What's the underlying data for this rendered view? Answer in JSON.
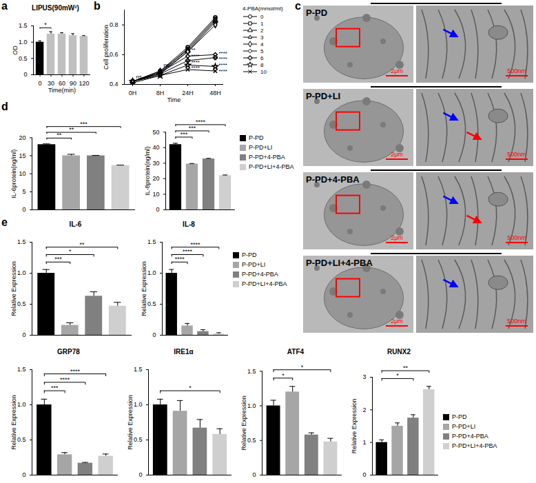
{
  "chart_data": [
    {
      "type": "bar",
      "panel_label": "a",
      "title": "LIPUS(90mW²)",
      "categories": [
        "0",
        "30",
        "60",
        "90",
        "120"
      ],
      "values": [
        1.0,
        1.25,
        1.25,
        1.2,
        1.18
      ],
      "errors": [
        0.04,
        0.07,
        0.04,
        0.06,
        0.02
      ],
      "colors": [
        "#000000",
        "#c0c0c0",
        "#c0c0c0",
        "#c0c0c0",
        "#c0c0c0"
      ],
      "ylim": [
        0,
        1.5
      ],
      "yticks": [
        0,
        0.5,
        {
          "value": 1,
          "label": "1.0"
        },
        1.5
      ],
      "xlabel": "Time(min)",
      "ylabel": "OD",
      "annotations": [
        {
          "between": [
            "0",
            "30"
          ],
          "text": "*"
        }
      ]
    },
    {
      "type": "line",
      "panel_label": "b",
      "categories": [
        "0H",
        "8H",
        "24H",
        "48H"
      ],
      "legend": "right",
      "legend_title": "4-PBA(mmol/ml)",
      "series": [
        {
          "name": "0",
          "color": "#000000",
          "marker": "circle",
          "values": [
            0.42,
            0.49,
            0.65,
            0.85
          ]
        },
        {
          "name": "1",
          "color": "#000000",
          "marker": "square",
          "values": [
            0.42,
            0.48,
            0.64,
            0.84
          ]
        },
        {
          "name": "2",
          "color": "#000000",
          "marker": "triangle",
          "values": [
            0.42,
            0.49,
            0.63,
            0.83
          ]
        },
        {
          "name": "3",
          "color": "#000000",
          "marker": "triangle2",
          "values": [
            0.42,
            0.48,
            0.62,
            0.82
          ]
        },
        {
          "name": "4",
          "color": "#000000",
          "marker": "diamond",
          "values": [
            0.42,
            0.47,
            0.62,
            0.8
          ]
        },
        {
          "name": "5",
          "color": "#000000",
          "marker": "diamond2",
          "values": [
            0.42,
            0.48,
            0.59,
            0.6
          ]
        },
        {
          "name": "6",
          "color": "#000000",
          "marker": "cross",
          "values": [
            0.42,
            0.47,
            0.56,
            0.58
          ]
        },
        {
          "name": "8",
          "color": "#000000",
          "marker": "star",
          "values": [
            0.42,
            0.46,
            0.53,
            0.52
          ]
        },
        {
          "name": "10",
          "color": "#000000",
          "marker": "times",
          "values": [
            0.41,
            0.46,
            0.5,
            0.49
          ]
        }
      ],
      "ylim": [
        0.4,
        0.9
      ],
      "yticks": [
        0.4,
        0.6,
        0.8
      ],
      "xlabel": "Time",
      "ylabel": "Cell proliferation",
      "annotations": [
        {
          "x": "0H",
          "y": 0.45,
          "text": "ns"
        },
        {
          "x": "8H",
          "y": 0.53,
          "text": "ns"
        },
        {
          "x": "24H",
          "y": 0.63,
          "text": "**"
        },
        {
          "x": "24H",
          "y": 0.59,
          "text": "****"
        },
        {
          "x": "24H",
          "y": 0.55,
          "text": "****"
        },
        {
          "x": "24H",
          "y": 0.51,
          "text": "****"
        },
        {
          "x": "48H",
          "y": 0.61,
          "text": "****"
        },
        {
          "x": "48H",
          "y": 0.57,
          "text": "****"
        },
        {
          "x": "48H",
          "y": 0.53,
          "text": "****"
        },
        {
          "x": "48H",
          "y": 0.49,
          "text": "****"
        }
      ]
    },
    {
      "type": "bar",
      "panel_label": "d",
      "tick_labels": "y",
      "categories": [
        "P-PD",
        "P-PD+LI",
        "P-PD+4-PBA",
        "P-PD+LI+4-PBA"
      ],
      "values": [
        18.1,
        15.0,
        15.0,
        12.3
      ],
      "errors": [
        0.2,
        0.4,
        0.1,
        0.1
      ],
      "colors": [
        "#000000",
        "#a6a6a6",
        "#808080",
        "#cfcfcf"
      ],
      "ylim": [
        0,
        20
      ],
      "yticks": [
        0,
        5,
        10,
        15,
        20
      ],
      "ylabel": "IL-6protein(ng/ml)",
      "annotations": [
        {
          "between": [
            "P-PD",
            "P-PD+LI"
          ],
          "text": "**"
        },
        {
          "between": [
            "P-PD",
            "P-PD+4-PBA"
          ],
          "text": "**"
        },
        {
          "between": [
            "P-PD",
            "P-PD+LI+4-PBA"
          ],
          "text": "***"
        }
      ]
    },
    {
      "type": "bar",
      "tick_labels": "y",
      "legend": "right",
      "categories": [
        "P-PD",
        "P-PD+LI",
        "P-PD+4-PBA",
        "P-PD+LI+4-PBA"
      ],
      "values": [
        42.0,
        29.5,
        32.8,
        22.0
      ],
      "errors": [
        0.8,
        0.3,
        0.3,
        0.4
      ],
      "colors": [
        "#000000",
        "#a6a6a6",
        "#808080",
        "#cfcfcf"
      ],
      "ylim": [
        0,
        50
      ],
      "yticks": [
        0,
        10,
        20,
        30,
        40,
        50
      ],
      "ylabel": "IL-8protein(ng/ml)",
      "annotations": [
        {
          "between": [
            "P-PD",
            "P-PD+LI"
          ],
          "text": "***"
        },
        {
          "between": [
            "P-PD",
            "P-PD+4-PBA"
          ],
          "text": "***"
        },
        {
          "between": [
            "P-PD",
            "P-PD+LI+4-PBA"
          ],
          "text": "****"
        }
      ]
    },
    {
      "type": "bar",
      "panel_label": "e",
      "title": "IL-6",
      "tick_labels": "y",
      "categories": [
        "P-PD",
        "P-PD+LI",
        "P-PD+4-PBA",
        "P-PD+LI+4-PBA"
      ],
      "values": [
        1.0,
        0.16,
        0.63,
        0.47
      ],
      "errors": [
        0.06,
        0.04,
        0.07,
        0.06
      ],
      "colors": [
        "#000000",
        "#a6a6a6",
        "#808080",
        "#cfcfcf"
      ],
      "ylim": [
        0,
        1.5
      ],
      "yticks": [
        0,
        0.5,
        {
          "value": 1,
          "label": "1.0"
        },
        1.5
      ],
      "ylabel": "Relative Expression",
      "annotations": [
        {
          "between": [
            "P-PD",
            "P-PD+LI"
          ],
          "text": "***"
        },
        {
          "between": [
            "P-PD",
            "P-PD+4-PBA"
          ],
          "text": "*"
        },
        {
          "between": [
            "P-PD",
            "P-PD+LI+4-PBA"
          ],
          "text": "**"
        }
      ]
    },
    {
      "type": "bar",
      "title": "IL-8",
      "tick_labels": "y",
      "legend": "right",
      "categories": [
        "P-PD",
        "P-PD+LI",
        "P-PD+4-PBA",
        "P-PD+LI+4-PBA"
      ],
      "values": [
        1.0,
        0.15,
        0.06,
        0.02
      ],
      "errors": [
        0.06,
        0.04,
        0.03,
        0.02
      ],
      "colors": [
        "#000000",
        "#a6a6a6",
        "#808080",
        "#cfcfcf"
      ],
      "ylim": [
        0,
        1.5
      ],
      "yticks": [
        0,
        0.5,
        {
          "value": 1,
          "label": "1.0"
        },
        1.5
      ],
      "ylabel": "Relative Expression",
      "annotations": [
        {
          "between": [
            "P-PD",
            "P-PD+LI"
          ],
          "text": "****"
        },
        {
          "between": [
            "P-PD",
            "P-PD+4-PBA"
          ],
          "text": "****"
        },
        {
          "between": [
            "P-PD",
            "P-PD+LI+4-PBA"
          ],
          "text": "****"
        }
      ]
    },
    {
      "type": "bar",
      "title": "GRP78",
      "tick_labels": "y",
      "categories": [
        "P-PD",
        "P-PD+LI",
        "P-PD+4-PBA",
        "P-PD+LI+4-PBA"
      ],
      "values": [
        1.0,
        0.29,
        0.17,
        0.27
      ],
      "errors": [
        0.08,
        0.03,
        0.01,
        0.03
      ],
      "colors": [
        "#000000",
        "#a6a6a6",
        "#808080",
        "#cfcfcf"
      ],
      "ylim": [
        0,
        1.5
      ],
      "yticks": [
        0,
        0.5,
        {
          "value": 1,
          "label": "1.0"
        },
        1.5
      ],
      "ylabel": "Relative Expression",
      "annotations": [
        {
          "between": [
            "P-PD",
            "P-PD+LI"
          ],
          "text": "***"
        },
        {
          "between": [
            "P-PD",
            "P-PD+4-PBA"
          ],
          "text": "****"
        },
        {
          "between": [
            "P-PD",
            "P-PD+LI+4-PBA"
          ],
          "text": "****"
        }
      ]
    },
    {
      "type": "bar",
      "title": "IRE1α",
      "tick_labels": "y",
      "categories": [
        "P-PD",
        "P-PD+LI",
        "P-PD+4-PBA",
        "P-PD+LI+4-PBA"
      ],
      "values": [
        1.0,
        0.91,
        0.67,
        0.58
      ],
      "errors": [
        0.08,
        0.15,
        0.12,
        0.08
      ],
      "colors": [
        "#000000",
        "#a6a6a6",
        "#808080",
        "#cfcfcf"
      ],
      "ylim": [
        0,
        1.5
      ],
      "yticks": [
        0,
        0.5,
        {
          "value": 1,
          "label": "1.0"
        },
        1.5
      ],
      "ylabel": "Relative Expression",
      "annotations": [
        {
          "between": [
            "P-PD",
            "P-PD+LI+4-PBA"
          ],
          "text": "*"
        }
      ]
    },
    {
      "type": "bar",
      "title": "ATF4",
      "tick_labels": "y",
      "categories": [
        "P-PD",
        "P-PD+LI",
        "P-PD+4-PBA",
        "P-PD+LI+4-PBA"
      ],
      "values": [
        1.0,
        1.2,
        0.58,
        0.48
      ],
      "errors": [
        0.08,
        0.08,
        0.03,
        0.05
      ],
      "colors": [
        "#000000",
        "#a6a6a6",
        "#808080",
        "#cfcfcf"
      ],
      "ylim": [
        0,
        1.5
      ],
      "yticks": [
        0,
        0.5,
        {
          "value": 1,
          "label": "1.0"
        },
        1.5
      ],
      "ylabel": "Relative Expression",
      "annotations": [
        {
          "between": [
            "P-PD",
            "P-PD+LI"
          ],
          "text": "*"
        },
        {
          "between": [
            "P-PD",
            "P-PD+LI+4-PBA"
          ],
          "text": "*"
        }
      ]
    },
    {
      "type": "bar",
      "title": "RUNX2",
      "tick_labels": "y",
      "legend": "right",
      "categories": [
        "P-PD",
        "P-PD+LI",
        "P-PD+4-PBA",
        "P-PD+LI+4-PBA"
      ],
      "values": [
        1.0,
        1.5,
        1.75,
        2.62
      ],
      "errors": [
        0.08,
        0.1,
        0.1,
        0.1
      ],
      "colors": [
        "#000000",
        "#a6a6a6",
        "#808080",
        "#cfcfcf"
      ],
      "ylim": [
        0,
        3
      ],
      "yticks": [
        0,
        1,
        2,
        3
      ],
      "ylabel": "Relative Expression",
      "annotations": [
        {
          "between": [
            "P-PD",
            "P-PD+4-PBA"
          ],
          "text": "*"
        },
        {
          "between": [
            "P-PD",
            "P-PD+LI+4-PBA"
          ],
          "text": "**"
        }
      ]
    }
  ],
  "panel_c": {
    "panel_label": "c",
    "rows": [
      {
        "label": "P-PD",
        "scale_bars": [
          "2μm",
          "500nm"
        ],
        "arrow_colors": [
          "blue"
        ]
      },
      {
        "label": "P-PD+LI",
        "scale_bars": [
          "2μm",
          "500nm"
        ],
        "arrow_colors": [
          "blue",
          "red"
        ]
      },
      {
        "label": "P-PD+4-PBA",
        "scale_bars": [
          "2μm",
          "500nm"
        ],
        "arrow_colors": [
          "blue",
          "red"
        ]
      },
      {
        "label": "P-PD+LI+4-PBA",
        "scale_bars": [
          "2μm",
          "500nm"
        ],
        "arrow_colors": [
          "blue"
        ]
      }
    ]
  }
}
